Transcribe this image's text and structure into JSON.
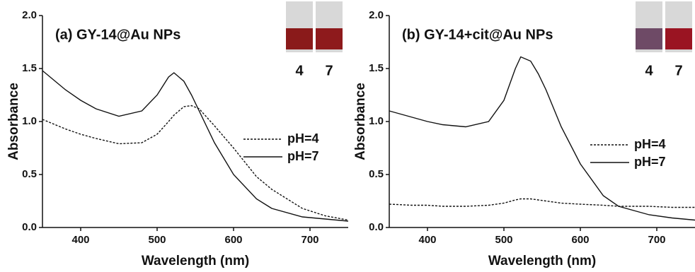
{
  "chart_data": [
    {
      "type": "line",
      "title": "(a) GY-14@Au NPs",
      "x_label": "Wavelength (nm)",
      "y_label": "Absorbance",
      "x": [
        350,
        380,
        400,
        420,
        450,
        480,
        500,
        515,
        522,
        535,
        545,
        555,
        575,
        600,
        630,
        650,
        690,
        720,
        750
      ],
      "series": [
        {
          "name": "pH=4",
          "color": "#111111",
          "dashed": true,
          "values": [
            1.02,
            0.93,
            0.88,
            0.84,
            0.79,
            0.8,
            0.88,
            1.0,
            1.06,
            1.14,
            1.15,
            1.12,
            0.96,
            0.75,
            0.48,
            0.36,
            0.18,
            0.11,
            0.07
          ]
        },
        {
          "name": "pH=7",
          "color": "#111111",
          "dashed": false,
          "values": [
            1.48,
            1.3,
            1.2,
            1.12,
            1.05,
            1.1,
            1.25,
            1.42,
            1.46,
            1.38,
            1.25,
            1.1,
            0.8,
            0.5,
            0.27,
            0.18,
            0.1,
            0.08,
            0.06
          ]
        }
      ],
      "xlim": [
        350,
        750
      ],
      "xticks": [
        400,
        500,
        600,
        700
      ],
      "ylim": [
        0,
        2
      ],
      "yticks": [
        {
          "value": 0,
          "label": "0.0"
        },
        {
          "value": 0.5,
          "label": "0.5"
        },
        {
          "value": 1,
          "label": "1.0"
        },
        {
          "value": 1.5,
          "label": "1.5"
        },
        {
          "value": 2,
          "label": "2.0"
        }
      ],
      "legend": "right",
      "inset_labels": [
        "4",
        "7"
      ],
      "inset_colors": [
        "#8a1a1a",
        "#8e1a1c"
      ]
    },
    {
      "type": "line",
      "title": "(b) GY-14+cit@Au NPs",
      "x_label": "Wavelength (nm)",
      "y_label": "Absorbance",
      "x": [
        350,
        380,
        400,
        420,
        450,
        480,
        500,
        515,
        522,
        535,
        545,
        555,
        575,
        600,
        630,
        650,
        690,
        720,
        750
      ],
      "series": [
        {
          "name": "pH=4",
          "color": "#111111",
          "dashed": true,
          "values": [
            0.22,
            0.21,
            0.21,
            0.2,
            0.2,
            0.21,
            0.23,
            0.26,
            0.27,
            0.27,
            0.26,
            0.25,
            0.23,
            0.22,
            0.21,
            0.2,
            0.2,
            0.19,
            0.19
          ]
        },
        {
          "name": "pH=7",
          "color": "#111111",
          "dashed": false,
          "values": [
            1.1,
            1.04,
            1.0,
            0.97,
            0.95,
            1.0,
            1.2,
            1.5,
            1.61,
            1.57,
            1.45,
            1.3,
            0.95,
            0.6,
            0.3,
            0.2,
            0.12,
            0.09,
            0.07
          ]
        }
      ],
      "xlim": [
        350,
        750
      ],
      "xticks": [
        400,
        500,
        600,
        700
      ],
      "ylim": [
        0,
        2
      ],
      "yticks": [
        {
          "value": 0,
          "label": "0.0"
        },
        {
          "value": 0.5,
          "label": "0.5"
        },
        {
          "value": 1,
          "label": "1.0"
        },
        {
          "value": 1.5,
          "label": "1.5"
        },
        {
          "value": 2,
          "label": "2.0"
        }
      ],
      "legend": "right",
      "inset_labels": [
        "4",
        "7"
      ],
      "inset_colors": [
        "#6e4a66",
        "#9a1422"
      ]
    }
  ]
}
